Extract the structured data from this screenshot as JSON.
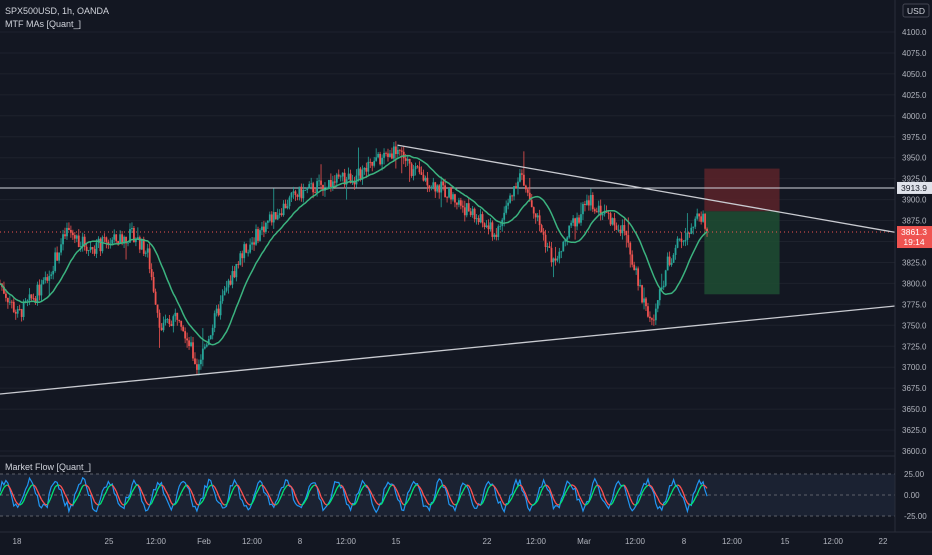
{
  "header": {
    "symbol_line": "SPX500USD, 1h, OANDA",
    "indicator_line": "MTF MAs [Quant_]",
    "currency_button": "USD"
  },
  "oscillator": {
    "title": "Market Flow [Quant_]",
    "ticks": [
      "25.00",
      "0.00",
      "-25.00"
    ]
  },
  "price_axis": {
    "ticks": [
      "4100.0",
      "4075.0",
      "4050.0",
      "4025.0",
      "4000.0",
      "3975.0",
      "3950.0",
      "3925.0",
      "3900.0",
      "3875.0",
      "3850.0",
      "3825.0",
      "3800.0",
      "3775.0",
      "3750.0",
      "3725.0",
      "3700.0",
      "3675.0",
      "3650.0",
      "3625.0",
      "3600.0"
    ],
    "level_label": "3913.9",
    "last_price_label": "3861.3",
    "countdown_label": "19:14"
  },
  "time_axis": {
    "ticks": [
      "18",
      "25",
      "12:00",
      "Feb",
      "12:00",
      "8",
      "12:00",
      "15",
      "22",
      "12:00",
      "Mar",
      "12:00",
      "8",
      "12:00",
      "15",
      "12:00",
      "22"
    ]
  },
  "colors": {
    "background": "#131722",
    "up": "#26a69a",
    "down": "#ef5350",
    "ma": "#3bb37f",
    "trendline": "#c9cbd1",
    "level_line": "#d1d4dc",
    "last_price_badge": "#ef5350",
    "risk_zone": "#5c2329",
    "reward_zone": "#1e4d32",
    "osc_fast": "#2196f3",
    "osc_up": "#00e676",
    "osc_down": "#ff5252"
  },
  "chart_data": {
    "type": "candlestick",
    "timeframe": "1h",
    "ylim": [
      3600,
      4110
    ],
    "horizontal_level": 3913.9,
    "last_price": 3861.3,
    "trendlines": [
      {
        "name": "resistance",
        "from": [
          0.444,
          3965
        ],
        "to": [
          1.0,
          3861
        ]
      },
      {
        "name": "support",
        "from": [
          0.0,
          3668
        ],
        "to": [
          1.0,
          3773
        ]
      }
    ],
    "position_zone": {
      "x_range": [
        0.787,
        0.871
      ],
      "entry": 3886,
      "stop": 3937,
      "target": 3787
    },
    "price_path": [
      [
        0.0,
        3800
      ],
      [
        0.02,
        3762
      ],
      [
        0.05,
        3800
      ],
      [
        0.075,
        3863
      ],
      [
        0.1,
        3842
      ],
      [
        0.15,
        3858
      ],
      [
        0.165,
        3835
      ],
      [
        0.18,
        3745
      ],
      [
        0.2,
        3765
      ],
      [
        0.22,
        3700
      ],
      [
        0.25,
        3785
      ],
      [
        0.27,
        3835
      ],
      [
        0.3,
        3875
      ],
      [
        0.33,
        3905
      ],
      [
        0.36,
        3918
      ],
      [
        0.4,
        3928
      ],
      [
        0.425,
        3948
      ],
      [
        0.445,
        3962
      ],
      [
        0.46,
        3935
      ],
      [
        0.5,
        3908
      ],
      [
        0.53,
        3880
      ],
      [
        0.555,
        3858
      ],
      [
        0.58,
        3932
      ],
      [
        0.6,
        3878
      ],
      [
        0.62,
        3820
      ],
      [
        0.64,
        3872
      ],
      [
        0.66,
        3898
      ],
      [
        0.68,
        3880
      ],
      [
        0.7,
        3858
      ],
      [
        0.715,
        3790
      ],
      [
        0.73,
        3752
      ],
      [
        0.745,
        3822
      ],
      [
        0.76,
        3852
      ],
      [
        0.775,
        3872
      ],
      [
        0.785,
        3882
      ],
      [
        0.79,
        3862
      ]
    ],
    "oscillator_ylim": [
      -35,
      35
    ]
  }
}
